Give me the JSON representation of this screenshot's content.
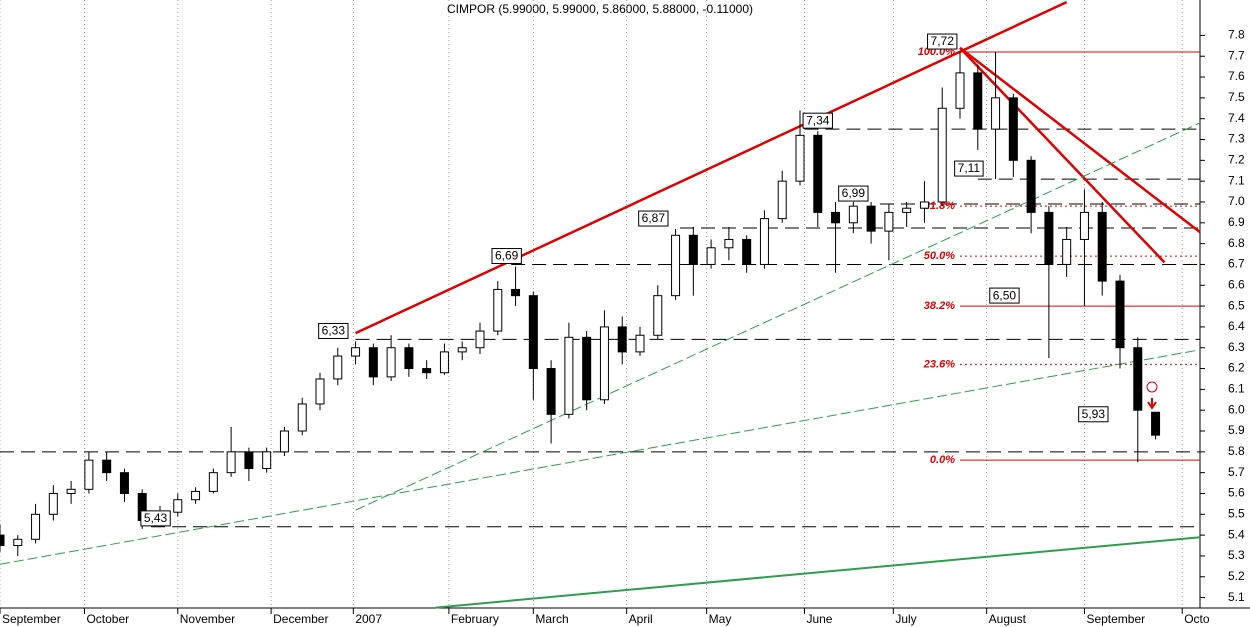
{
  "chart_data": {
    "type": "candlestick",
    "title": "CIMPOR (5.99000, 5.99000, 5.86000, 5.88000, -0.11000)",
    "xlim": [
      0,
      270
    ],
    "ylim": [
      5.05,
      7.97
    ],
    "xticks": [
      {
        "value": 0,
        "label": "September"
      },
      {
        "value": 19,
        "label": "October"
      },
      {
        "value": 40,
        "label": "November"
      },
      {
        "value": 61,
        "label": "December"
      },
      {
        "value": 79.5,
        "label": "2007"
      },
      {
        "value": 101,
        "label": "February"
      },
      {
        "value": 120,
        "label": "March"
      },
      {
        "value": 141,
        "label": "April"
      },
      {
        "value": 159,
        "label": "May"
      },
      {
        "value": 181,
        "label": "June"
      },
      {
        "value": 201,
        "label": "July"
      },
      {
        "value": 222,
        "label": "August"
      },
      {
        "value": 244,
        "label": "September"
      },
      {
        "value": 266,
        "label": "Octo"
      }
    ],
    "yticks": [
      5.1,
      5.2,
      5.3,
      5.4,
      5.5,
      5.6,
      5.7,
      5.8,
      5.9,
      {
        "value": 6,
        "label": "6.0"
      },
      6.1,
      6.2,
      6.3,
      6.4,
      6.5,
      6.6,
      6.7,
      6.8,
      6.9,
      {
        "value": 7,
        "label": "7.0"
      },
      7.1,
      7.2,
      7.3,
      7.4,
      7.5,
      7.6,
      7.7,
      7.8
    ],
    "x": [
      0,
      4,
      8,
      12,
      16,
      20,
      24,
      28,
      32,
      36,
      40,
      44,
      48,
      52,
      56,
      60,
      64,
      68,
      72,
      76,
      80,
      84,
      88,
      92,
      96,
      100,
      104,
      108,
      112,
      116,
      120,
      124,
      128,
      132,
      136,
      140,
      144,
      148,
      152,
      156,
      160,
      164,
      168,
      172,
      176,
      180,
      184,
      188,
      192,
      196,
      200,
      204,
      208,
      212,
      216,
      220,
      224,
      228,
      232,
      236,
      240,
      244,
      248,
      252,
      256,
      260
    ],
    "open": [
      5.4,
      5.35,
      5.38,
      5.5,
      5.6,
      5.62,
      5.76,
      5.7,
      5.6,
      5.47,
      5.51,
      5.57,
      5.61,
      5.7,
      5.8,
      5.72,
      5.8,
      5.9,
      6.03,
      6.15,
      6.26,
      6.3,
      6.16,
      6.3,
      6.2,
      6.18,
      6.28,
      6.3,
      6.38,
      6.58,
      6.55,
      6.2,
      5.98,
      6.35,
      6.05,
      6.4,
      6.28,
      6.36,
      6.55,
      6.84,
      6.7,
      6.78,
      6.82,
      6.7,
      6.92,
      7.1,
      7.32,
      6.95,
      6.9,
      6.98,
      6.86,
      6.95,
      6.97,
      7.0,
      7.45,
      7.62,
      7.35,
      7.5,
      7.2,
      6.95,
      6.7,
      6.82,
      6.95,
      6.62,
      6.3,
      5.99
    ],
    "high": [
      5.45,
      5.4,
      5.55,
      5.64,
      5.66,
      5.8,
      5.8,
      5.72,
      5.62,
      5.54,
      5.6,
      5.63,
      5.72,
      5.92,
      5.82,
      5.82,
      5.92,
      6.06,
      6.18,
      6.3,
      6.33,
      6.32,
      6.36,
      6.32,
      6.24,
      6.32,
      6.33,
      6.42,
      6.62,
      6.69,
      6.57,
      6.24,
      6.42,
      6.38,
      6.48,
      6.45,
      6.4,
      6.6,
      6.87,
      6.88,
      6.82,
      6.88,
      6.84,
      6.96,
      7.15,
      7.44,
      7.34,
      7.0,
      7.0,
      7.0,
      6.99,
      7.0,
      7.1,
      7.55,
      7.72,
      7.66,
      7.72,
      7.52,
      7.22,
      6.98,
      6.88,
      7.06,
      7.0,
      6.65,
      6.35,
      5.99
    ],
    "low": [
      5.32,
      5.3,
      5.36,
      5.47,
      5.55,
      5.6,
      5.66,
      5.56,
      5.43,
      5.45,
      5.49,
      5.55,
      5.6,
      5.68,
      5.66,
      5.7,
      5.78,
      5.88,
      6.0,
      6.12,
      6.22,
      6.12,
      6.14,
      6.16,
      6.15,
      6.17,
      6.24,
      6.27,
      6.36,
      6.5,
      6.05,
      5.84,
      5.96,
      6.0,
      6.03,
      6.22,
      6.26,
      6.34,
      6.53,
      6.55,
      6.68,
      6.72,
      6.66,
      6.68,
      6.9,
      7.08,
      6.88,
      6.66,
      6.85,
      6.8,
      6.72,
      6.88,
      6.9,
      6.98,
      7.4,
      7.25,
      7.11,
      7.12,
      6.85,
      6.25,
      6.64,
      6.5,
      6.55,
      6.2,
      5.75,
      5.86
    ],
    "close": [
      5.35,
      5.38,
      5.5,
      5.6,
      5.62,
      5.76,
      5.7,
      5.6,
      5.47,
      5.51,
      5.57,
      5.61,
      5.7,
      5.8,
      5.72,
      5.8,
      5.9,
      6.03,
      6.15,
      6.26,
      6.3,
      6.16,
      6.3,
      6.2,
      6.18,
      6.28,
      6.3,
      6.38,
      6.58,
      6.55,
      6.2,
      5.98,
      6.35,
      6.05,
      6.4,
      6.28,
      6.36,
      6.55,
      6.84,
      6.7,
      6.78,
      6.82,
      6.7,
      6.92,
      7.1,
      7.32,
      6.95,
      6.9,
      6.98,
      6.86,
      6.95,
      6.97,
      7.0,
      7.45,
      7.62,
      7.35,
      7.5,
      7.2,
      6.95,
      6.7,
      6.82,
      6.95,
      6.62,
      6.3,
      6.0,
      5.88
    ],
    "levels": [
      {
        "value": 5.8,
        "start": 0
      },
      {
        "value": 5.44,
        "start": 34
      },
      {
        "value": 6.34,
        "start": 80
      },
      {
        "value": 6.7,
        "start": 115
      },
      {
        "value": 6.875,
        "start": 153
      },
      {
        "value": 6.99,
        "start": 198
      },
      {
        "value": 7.11,
        "start": 220
      },
      {
        "value": 7.35,
        "start": 181
      }
    ],
    "fibonacci": [
      {
        "label": "100.0%",
        "value": 7.72
      },
      {
        "label": "61.8%",
        "value": 6.98
      },
      {
        "label": "50.0%",
        "value": 6.74
      },
      {
        "label": "38.2%",
        "value": 6.5
      },
      {
        "label": "23.6%",
        "value": 6.22
      },
      {
        "label": "0.0%",
        "value": 5.76
      }
    ],
    "annotations": [
      {
        "text": "5,43",
        "x": 35,
        "y": 5.43
      },
      {
        "text": "6,33",
        "x": 75,
        "y": 6.33
      },
      {
        "text": "6,69",
        "x": 114,
        "y": 6.69
      },
      {
        "text": "6,87",
        "x": 147,
        "y": 6.87
      },
      {
        "text": "7,34",
        "x": 184,
        "y": 7.34
      },
      {
        "text": "6,99",
        "x": 192,
        "y": 6.99
      },
      {
        "text": "7,72",
        "x": 212,
        "y": 7.72
      },
      {
        "text": "7,11",
        "x": 218,
        "y": 7.11
      },
      {
        "text": "6,50",
        "x": 226,
        "y": 6.5
      },
      {
        "text": "5,93",
        "x": 246,
        "y": 5.93
      }
    ],
    "trendlines": [
      {
        "color": "#e00000",
        "style": "solid",
        "x": [
          80,
          240
        ],
        "y": [
          6.37,
          7.96
        ]
      },
      {
        "color": "#e00000",
        "style": "solid",
        "x": [
          216,
          270
        ],
        "y": [
          7.74,
          6.855
        ]
      },
      {
        "color": "#e00000",
        "style": "solid",
        "x": [
          216,
          262
        ],
        "y": [
          7.74,
          6.71
        ]
      },
      {
        "color": "#2e9e4e",
        "style": "dashed",
        "x": [
          0,
          270
        ],
        "y": [
          5.26,
          6.29
        ]
      },
      {
        "color": "#2e9e4e",
        "style": "dashed",
        "x": [
          80,
          270
        ],
        "y": [
          5.52,
          7.38
        ]
      },
      {
        "color": "#2e9e4e",
        "style": "solid",
        "x": [
          98,
          270
        ],
        "y": [
          5.052,
          5.39
        ]
      }
    ]
  }
}
